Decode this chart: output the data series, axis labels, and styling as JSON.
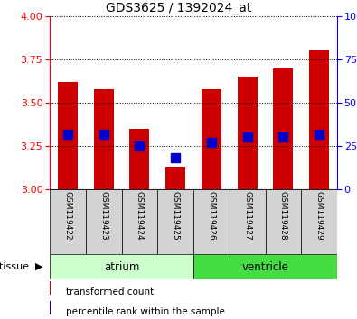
{
  "title": "GDS3625 / 1392024_at",
  "samples": [
    "GSM119422",
    "GSM119423",
    "GSM119424",
    "GSM119425",
    "GSM119426",
    "GSM119427",
    "GSM119428",
    "GSM119429"
  ],
  "transformed_counts": [
    3.62,
    3.58,
    3.35,
    3.13,
    3.58,
    3.65,
    3.7,
    3.8
  ],
  "percentile_ranks": [
    32,
    32,
    25,
    18,
    27,
    30,
    30,
    32
  ],
  "ylim_left": [
    3.0,
    4.0
  ],
  "ylim_right": [
    0,
    100
  ],
  "yticks_left": [
    3.0,
    3.25,
    3.5,
    3.75,
    4.0
  ],
  "yticks_right": [
    0,
    25,
    50,
    75,
    100
  ],
  "bar_color": "#cc0000",
  "dot_color": "#0000cc",
  "bar_baseline": 3.0,
  "tissues": [
    {
      "label": "atrium",
      "start": 0,
      "end": 4,
      "color": "#ccffcc"
    },
    {
      "label": "ventricle",
      "start": 4,
      "end": 8,
      "color": "#44dd44"
    }
  ],
  "tissue_label": "tissue",
  "legend_items": [
    {
      "label": "transformed count",
      "color": "#cc0000"
    },
    {
      "label": "percentile rank within the sample",
      "color": "#0000cc"
    }
  ],
  "bar_width": 0.55,
  "dot_size": 45
}
